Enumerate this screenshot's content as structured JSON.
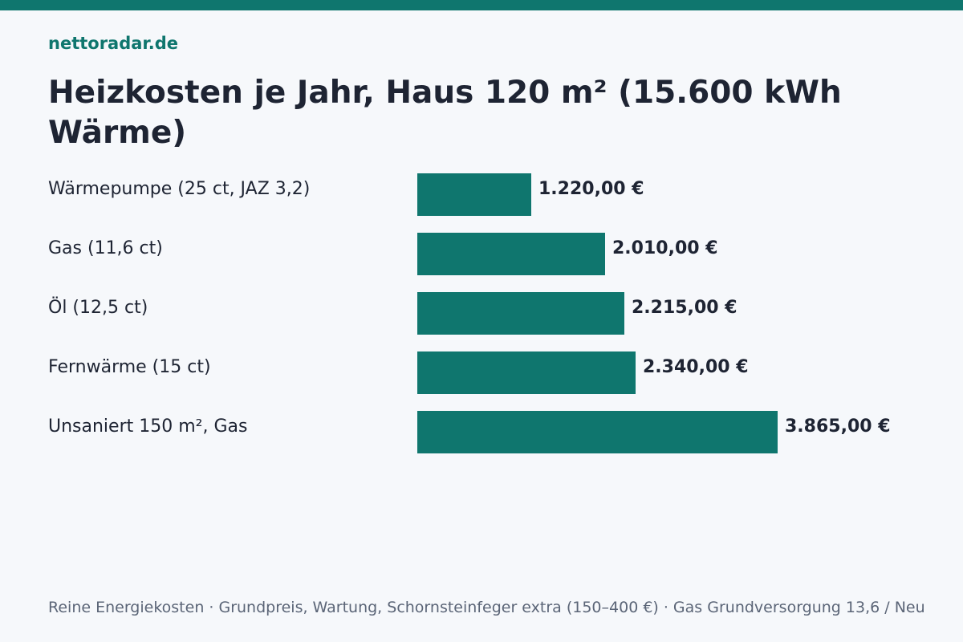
{
  "brand": "nettoradar.de",
  "title": "Heizkosten je Jahr, Haus 120 m² (15.600 kWh Wärme)",
  "footer": "Reine Energiekosten · Grundpreis, Wartung, Schornsteinfeger extra (150–400 €) · Gas Grundversorgung 13,6 / Neu",
  "colors": {
    "accent": "#0f766e",
    "bar": "#0f766e",
    "text": "#1e2433",
    "muted": "#5b6577",
    "background": "#f6f8fb"
  },
  "chart_data": {
    "type": "bar",
    "orientation": "horizontal",
    "categories": [
      "Wärmepumpe (25 ct, JAZ 3,2)",
      "Gas (11,6 ct)",
      "Öl (12,5 ct)",
      "Fernwärme (15 ct)",
      "Unsaniert 150 m², Gas"
    ],
    "values": [
      1220,
      2010,
      2215,
      2340,
      3865
    ],
    "value_labels": [
      "1.220,00 €",
      "2.010,00 €",
      "2.215,00 €",
      "2.340,00 €",
      "3.865,00 €"
    ],
    "title": "Heizkosten je Jahr, Haus 120 m² (15.600 kWh Wärme)",
    "xlabel": "",
    "ylabel": "",
    "xlim": [
      0,
      4300
    ],
    "grid": false,
    "legend": "none"
  }
}
